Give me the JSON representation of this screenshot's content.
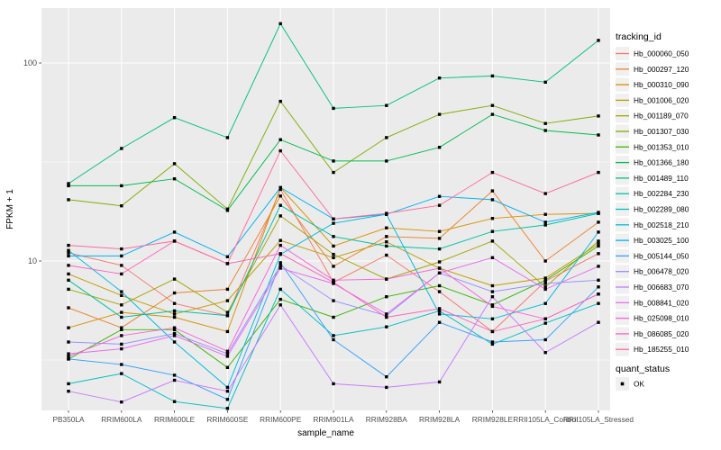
{
  "chart_data": {
    "type": "line",
    "xlabel": "sample_name",
    "ylabel": "FPKM + 1",
    "y_scale": "log10",
    "ylim": [
      1.78,
      187
    ],
    "y_major_ticks": [
      10,
      100
    ],
    "y_minor_ticks": [
      3.1623,
      31.623
    ],
    "grid": true,
    "panel_bg": "#EBEBEB",
    "grid_color": "#FFFFFF",
    "axis_text_color": "#4D4D4D",
    "tick_mark_color": "#333333",
    "marker": "black-square",
    "legend_position": "right",
    "legend_title": "tracking_id",
    "legend_key_bg": "#F0F0F0",
    "legend2_title": "quant_status",
    "legend2_items": [
      {
        "label": "OK",
        "marker": "black-square",
        "color": "#000000"
      }
    ],
    "categories": [
      "PB350LA",
      "RRIM600LA",
      "RRIM600LE",
      "RRIM600SE",
      "RRIM600PE",
      "RRIM901LA",
      "RRIM928BA",
      "RRIM928LA",
      "RRIM928LE",
      "RRII105LA_Control",
      "RRII105LA_Stressed"
    ],
    "series": [
      {
        "name": "Hb_000060_050",
        "color": "#F8766D",
        "values": [
          11.0,
          9.5,
          6.1,
          5.3,
          23.0,
          7.8,
          10.7,
          7.0,
          4.4,
          7.9,
          10.9
        ]
      },
      {
        "name": "Hb_000297_120",
        "color": "#EA8331",
        "values": [
          5.8,
          4.6,
          6.9,
          7.2,
          21.3,
          9.4,
          13.3,
          13.0,
          22.6,
          10.0,
          15.7
        ]
      },
      {
        "name": "Hb_000310_090",
        "color": "#D89000",
        "values": [
          4.6,
          5.5,
          5.2,
          4.4,
          23.5,
          11.9,
          14.7,
          14.1,
          16.4,
          17.2,
          17.4
        ]
      },
      {
        "name": "Hb_001006_020",
        "color": "#C09B00",
        "values": [
          8.6,
          6.7,
          5.4,
          6.3,
          12.7,
          10.4,
          12.5,
          9.2,
          7.5,
          8.2,
          12.2
        ]
      },
      {
        "name": "Hb_001189_070",
        "color": "#A3A500",
        "values": [
          7.2,
          6.0,
          8.1,
          5.5,
          16.9,
          10.8,
          8.1,
          9.9,
          12.6,
          7.4,
          12.6
        ]
      },
      {
        "name": "Hb_001307_030",
        "color": "#7CAE00",
        "values": [
          20.4,
          19.0,
          31.0,
          18.3,
          64.0,
          28.0,
          42.0,
          55.0,
          61.0,
          49.5,
          54.0
        ]
      },
      {
        "name": "Hb_001353_010",
        "color": "#39B600",
        "values": [
          3.2,
          4.5,
          4.5,
          2.9,
          6.4,
          5.2,
          6.6,
          7.5,
          6.0,
          8.0,
          11.9
        ]
      },
      {
        "name": "Hb_001366_180",
        "color": "#00BB4E",
        "values": [
          24.0,
          24.0,
          26.0,
          18.0,
          41.0,
          32.0,
          32.0,
          37.5,
          55.0,
          45.6,
          43.3
        ]
      },
      {
        "name": "Hb_001489_110",
        "color": "#00C087",
        "values": [
          24.6,
          37.0,
          53.0,
          42.0,
          158.0,
          59.0,
          61.0,
          84.0,
          86.0,
          80.0,
          130.0
        ]
      },
      {
        "name": "Hb_002284_230",
        "color": "#00C1A3",
        "values": [
          8.0,
          5.2,
          5.6,
          5.3,
          19.1,
          13.3,
          11.9,
          11.5,
          14.1,
          15.2,
          17.4
        ]
      },
      {
        "name": "Hb_002289_080",
        "color": "#00BFC4",
        "values": [
          2.4,
          2.7,
          1.95,
          1.8,
          7.2,
          4.2,
          4.65,
          5.6,
          3.8,
          4.85,
          6.1
        ]
      },
      {
        "name": "Hb_002518_210",
        "color": "#00BAE0",
        "values": [
          11.3,
          7.0,
          3.9,
          2.3,
          10.8,
          15.5,
          17.2,
          5.4,
          5.1,
          6.1,
          14.0
        ]
      },
      {
        "name": "Hb_003025_100",
        "color": "#00B0F6",
        "values": [
          10.6,
          10.6,
          14.0,
          10.5,
          23.5,
          16.3,
          17.2,
          21.2,
          20.4,
          15.7,
          17.6
        ]
      },
      {
        "name": "Hb_005144_050",
        "color": "#35A2FF",
        "values": [
          3.2,
          3.0,
          2.65,
          2.0,
          9.8,
          4.0,
          2.6,
          4.9,
          3.9,
          4.0,
          7.4
        ]
      },
      {
        "name": "Hb_006478_020",
        "color": "#9590FF",
        "values": [
          3.9,
          3.8,
          4.3,
          3.4,
          9.5,
          6.3,
          5.3,
          8.7,
          7.0,
          7.7,
          8.0
        ]
      },
      {
        "name": "Hb_006683_070",
        "color": "#C77CFF",
        "values": [
          2.2,
          1.94,
          2.5,
          2.2,
          6.0,
          2.4,
          2.3,
          2.45,
          6.6,
          3.45,
          4.9
        ]
      },
      {
        "name": "Hb_008841_020",
        "color": "#E76BF3",
        "values": [
          3.4,
          3.6,
          4.2,
          3.3,
          9.2,
          7.7,
          5.4,
          8.7,
          10.4,
          7.2,
          9.4
        ]
      },
      {
        "name": "Hb_025098_010",
        "color": "#FA62DB",
        "values": [
          3.3,
          4.2,
          4.6,
          3.5,
          12.0,
          8.0,
          8.1,
          9.2,
          5.9,
          5.1,
          6.8
        ]
      },
      {
        "name": "Hb_086085_020",
        "color": "#FF62BC",
        "values": [
          9.5,
          8.6,
          12.6,
          9.7,
          10.9,
          7.8,
          5.2,
          5.75,
          4.4,
          5.1,
          6.8
        ]
      },
      {
        "name": "Hb_185255_010",
        "color": "#FF6A98",
        "values": [
          12.0,
          11.5,
          12.6,
          9.7,
          36.0,
          16.3,
          17.4,
          19.1,
          28.0,
          21.9,
          28.0
        ]
      }
    ]
  },
  "layout_labels": {
    "y_tick_100": "100",
    "y_tick_10": "10"
  }
}
